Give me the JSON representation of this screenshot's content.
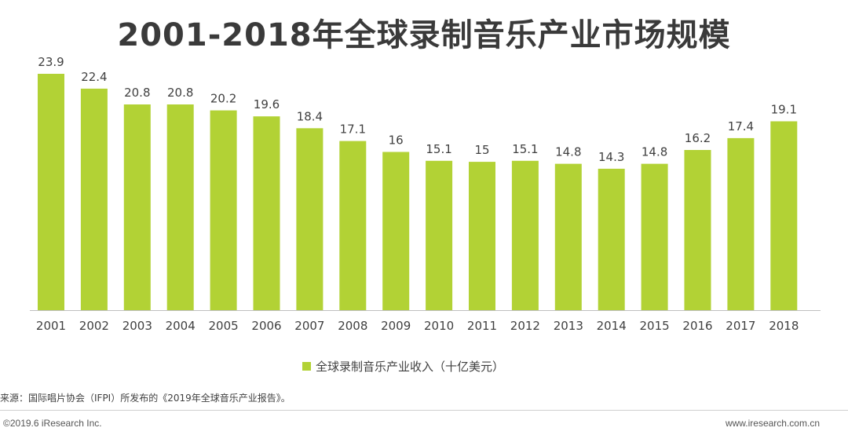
{
  "title": "2001-2018年全球录制音乐产业市场规模",
  "legend": {
    "label": "全球录制音乐产业收入（十亿美元）"
  },
  "source": "来源：国际唱片协会（IFPI）所发布的《2019年全球音乐产业报告》。",
  "footer": {
    "copyright": "©2019.6 iResearch Inc.",
    "website": "www.iresearch.com.cn"
  },
  "colors": {
    "bar": "#b2d235",
    "axis": "#bfbfbf",
    "label_text": "#404040"
  },
  "chart_data": {
    "type": "bar",
    "title": "2001-2018年全球录制音乐产业市场规模",
    "categories": [
      "2001",
      "2002",
      "2003",
      "2004",
      "2005",
      "2006",
      "2007",
      "2008",
      "2009",
      "2010",
      "2011",
      "2012",
      "2013",
      "2014",
      "2015",
      "2016",
      "2017",
      "2018"
    ],
    "series": [
      {
        "name": "全球录制音乐产业收入（十亿美元）",
        "values": [
          23.9,
          22.4,
          20.8,
          20.8,
          20.2,
          19.6,
          18.4,
          17.1,
          16,
          15.1,
          15,
          15.1,
          14.8,
          14.3,
          14.8,
          16.2,
          17.4,
          19.1
        ],
        "labels": [
          "23.9",
          "22.4",
          "20.8",
          "20.8",
          "20.2",
          "19.6",
          "18.4",
          "17.1",
          "16",
          "15.1",
          "15",
          "15.1",
          "14.8",
          "14.3",
          "14.8",
          "16.2",
          "17.4",
          "19.1"
        ]
      }
    ],
    "xlabel": "",
    "ylabel": "",
    "ylim": [
      0,
      24
    ],
    "grid": false,
    "legend_position": "bottom",
    "data_labels": true
  }
}
